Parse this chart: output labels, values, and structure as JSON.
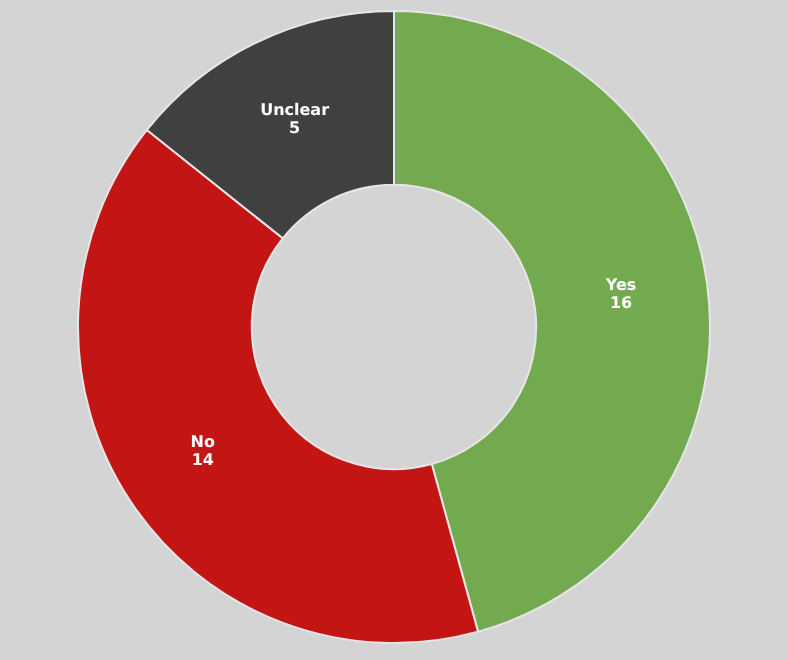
{
  "chart_data": {
    "type": "donut",
    "categories": [
      "Yes",
      "No",
      "Unclear"
    ],
    "values": [
      16,
      14,
      5
    ],
    "colors": [
      "#73a94f",
      "#c41515",
      "#404040"
    ],
    "data_labels": true,
    "legend": false
  }
}
